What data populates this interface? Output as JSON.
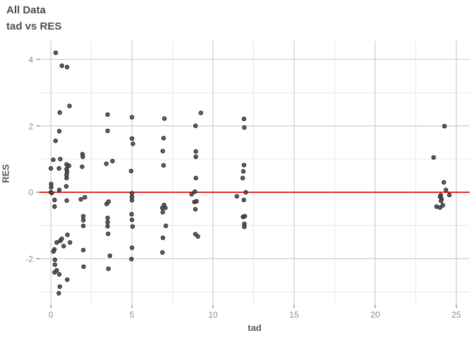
{
  "chart_data": {
    "type": "scatter",
    "title": "All Data",
    "subtitle": "tad vs RES",
    "xlabel": "tad",
    "ylabel": "RES",
    "x_ticks": [
      0,
      5,
      10,
      15,
      20,
      25
    ],
    "x_minor_ticks": [
      2.5,
      7.5,
      12.5,
      17.5,
      22.5
    ],
    "y_ticks": [
      -2,
      0,
      2,
      4
    ],
    "y_minor_ticks": [
      -3,
      -1,
      1,
      3
    ],
    "xlim": [
      -0.7,
      25.83
    ],
    "ylim": [
      -3.39,
      4.56
    ],
    "grid": true,
    "legend": "none",
    "reference_line": {
      "y": 0,
      "color": "#dd0000"
    },
    "point_color": "#4f4f4f",
    "point_edge_color": "#262626",
    "points": [
      [
        0.3,
        4.2
      ],
      [
        0.68,
        3.81
      ],
      [
        1.0,
        3.77
      ],
      [
        1.15,
        2.6
      ],
      [
        0.55,
        2.4
      ],
      [
        0.52,
        1.84
      ],
      [
        0.29,
        1.55
      ],
      [
        0.15,
        0.98
      ],
      [
        0.58,
        1.0
      ],
      [
        0.0,
        0.72
      ],
      [
        0.5,
        0.72
      ],
      [
        0.97,
        0.84
      ],
      [
        1.12,
        0.8
      ],
      [
        0.97,
        0.7
      ],
      [
        1.0,
        0.62
      ],
      [
        0.97,
        0.53
      ],
      [
        0.97,
        0.43
      ],
      [
        1.95,
        1.15
      ],
      [
        1.97,
        1.07
      ],
      [
        1.93,
        0.77
      ],
      [
        0.02,
        0.25
      ],
      [
        0.02,
        0.15
      ],
      [
        0.52,
        0.07
      ],
      [
        0.95,
        0.18
      ],
      [
        0.0,
        0.0
      ],
      [
        0.06,
        -0.02
      ],
      [
        0.23,
        -0.23
      ],
      [
        0.98,
        -0.25
      ],
      [
        0.23,
        -0.43
      ],
      [
        1.85,
        -0.21
      ],
      [
        2.1,
        -0.15
      ],
      [
        2.0,
        -0.72
      ],
      [
        2.0,
        -0.84
      ],
      [
        2.0,
        -1.01
      ],
      [
        1.02,
        -1.28
      ],
      [
        0.58,
        -1.46
      ],
      [
        0.67,
        -1.4
      ],
      [
        0.36,
        -1.51
      ],
      [
        1.18,
        -1.51
      ],
      [
        0.79,
        -1.62
      ],
      [
        0.22,
        -1.72
      ],
      [
        0.16,
        -1.78
      ],
      [
        2.0,
        -1.74
      ],
      [
        0.25,
        -2.03
      ],
      [
        0.25,
        -2.18
      ],
      [
        0.36,
        -2.35
      ],
      [
        0.23,
        -2.41
      ],
      [
        0.52,
        -2.47
      ],
      [
        2.02,
        -2.24
      ],
      [
        1.01,
        -2.63
      ],
      [
        0.55,
        -2.84
      ],
      [
        0.49,
        -3.04
      ],
      [
        3.5,
        2.34
      ],
      [
        3.5,
        1.85
      ],
      [
        3.42,
        0.86
      ],
      [
        3.8,
        0.94
      ],
      [
        3.44,
        -0.35
      ],
      [
        3.56,
        -0.28
      ],
      [
        3.5,
        -0.77
      ],
      [
        3.5,
        -0.9
      ],
      [
        3.5,
        -1.02
      ],
      [
        3.53,
        -1.25
      ],
      [
        3.64,
        -1.91
      ],
      [
        3.55,
        -2.3
      ],
      [
        5.0,
        2.26
      ],
      [
        5.0,
        1.62
      ],
      [
        5.06,
        1.46
      ],
      [
        4.95,
        0.64
      ],
      [
        5.0,
        -0.03
      ],
      [
        5.0,
        -0.14
      ],
      [
        5.0,
        -0.24
      ],
      [
        4.98,
        -0.66
      ],
      [
        5.0,
        -0.83
      ],
      [
        5.04,
        -1.03
      ],
      [
        5.0,
        -1.67
      ],
      [
        4.97,
        -2.01
      ],
      [
        7.0,
        2.22
      ],
      [
        6.95,
        1.63
      ],
      [
        6.9,
        1.24
      ],
      [
        6.95,
        0.81
      ],
      [
        6.98,
        -0.38
      ],
      [
        6.87,
        -0.47
      ],
      [
        7.06,
        -0.47
      ],
      [
        6.9,
        -0.6
      ],
      [
        7.09,
        -1.01
      ],
      [
        6.91,
        -1.37
      ],
      [
        6.88,
        -1.81
      ],
      [
        9.25,
        2.39
      ],
      [
        8.92,
        2.0
      ],
      [
        8.94,
        1.23
      ],
      [
        8.94,
        1.07
      ],
      [
        8.94,
        0.43
      ],
      [
        8.88,
        0.02
      ],
      [
        8.68,
        -0.06
      ],
      [
        8.85,
        -0.29
      ],
      [
        8.98,
        -0.27
      ],
      [
        8.91,
        -0.51
      ],
      [
        8.91,
        -1.26
      ],
      [
        9.07,
        -1.33
      ],
      [
        11.91,
        2.21
      ],
      [
        11.93,
        1.95
      ],
      [
        11.91,
        0.82
      ],
      [
        11.87,
        0.63
      ],
      [
        11.83,
        0.43
      ],
      [
        12.02,
        0.0
      ],
      [
        11.47,
        -0.12
      ],
      [
        11.9,
        -0.23
      ],
      [
        11.85,
        -0.74
      ],
      [
        11.96,
        -0.72
      ],
      [
        11.93,
        -0.95
      ],
      [
        11.93,
        -1.04
      ],
      [
        24.27,
        1.99
      ],
      [
        23.6,
        1.05
      ],
      [
        24.23,
        0.3
      ],
      [
        24.36,
        0.07
      ],
      [
        24.57,
        -0.08
      ],
      [
        24.04,
        -0.09
      ],
      [
        24.0,
        -0.13
      ],
      [
        24.09,
        -0.2
      ],
      [
        24.06,
        -0.26
      ],
      [
        24.17,
        -0.39
      ],
      [
        23.78,
        -0.43
      ],
      [
        23.99,
        -0.46
      ]
    ]
  }
}
